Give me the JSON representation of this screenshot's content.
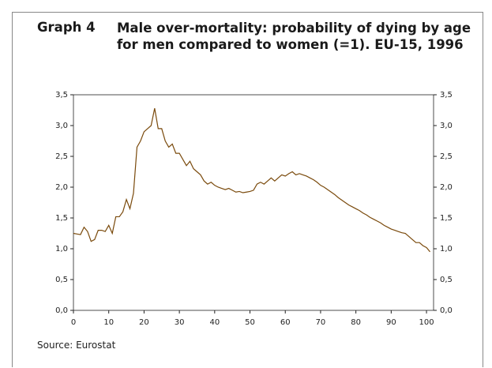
{
  "chart_data": {
    "type": "line",
    "label": "Graph 4",
    "title": "Male over-mortality: probability of dying by age for men compared to women (=1). EU-15, 1996",
    "source": "Source: Eurostat",
    "x": [
      0,
      1,
      2,
      3,
      4,
      5,
      6,
      7,
      8,
      9,
      10,
      11,
      12,
      13,
      14,
      15,
      16,
      17,
      18,
      19,
      20,
      21,
      22,
      23,
      24,
      25,
      26,
      27,
      28,
      29,
      30,
      31,
      32,
      33,
      34,
      35,
      36,
      37,
      38,
      39,
      40,
      41,
      42,
      43,
      44,
      45,
      46,
      47,
      48,
      49,
      50,
      51,
      52,
      53,
      54,
      55,
      56,
      57,
      58,
      59,
      60,
      61,
      62,
      63,
      64,
      65,
      66,
      67,
      68,
      69,
      70,
      71,
      72,
      73,
      74,
      75,
      76,
      77,
      78,
      79,
      80,
      81,
      82,
      83,
      84,
      85,
      86,
      87,
      88,
      89,
      90,
      91,
      92,
      93,
      94,
      95,
      96,
      97,
      98,
      99,
      100,
      101
    ],
    "series": [
      {
        "color": "#7a4a0c",
        "values": [
          1.25,
          1.24,
          1.23,
          1.35,
          1.28,
          1.12,
          1.15,
          1.3,
          1.3,
          1.28,
          1.38,
          1.25,
          1.52,
          1.52,
          1.6,
          1.8,
          1.65,
          1.9,
          2.65,
          2.75,
          2.9,
          2.95,
          3.0,
          3.28,
          2.95,
          2.95,
          2.75,
          2.65,
          2.7,
          2.55,
          2.55,
          2.45,
          2.35,
          2.42,
          2.3,
          2.25,
          2.2,
          2.1,
          2.05,
          2.08,
          2.03,
          2.0,
          1.98,
          1.96,
          1.98,
          1.95,
          1.92,
          1.93,
          1.91,
          1.92,
          1.93,
          1.95,
          2.05,
          2.08,
          2.05,
          2.1,
          2.15,
          2.1,
          2.15,
          2.2,
          2.18,
          2.22,
          2.25,
          2.2,
          2.22,
          2.2,
          2.18,
          2.15,
          2.12,
          2.08,
          2.03,
          2.0,
          1.96,
          1.92,
          1.88,
          1.83,
          1.79,
          1.75,
          1.71,
          1.68,
          1.65,
          1.62,
          1.58,
          1.55,
          1.51,
          1.48,
          1.45,
          1.42,
          1.38,
          1.35,
          1.32,
          1.3,
          1.28,
          1.26,
          1.25,
          1.2,
          1.15,
          1.1,
          1.1,
          1.05,
          1.02,
          0.95
        ]
      }
    ],
    "xlim": [
      0,
      102
    ],
    "xticks": [
      0,
      10,
      20,
      30,
      40,
      50,
      60,
      70,
      80,
      90,
      100
    ],
    "ylim": [
      0,
      3.5
    ],
    "yticks": [
      {
        "value": 0,
        "label": "0,0"
      },
      {
        "value": 0.5,
        "label": "0,5"
      },
      {
        "value": 1,
        "label": "1,0"
      },
      {
        "value": 1.5,
        "label": "1,5"
      },
      {
        "value": 2,
        "label": "2,0"
      },
      {
        "value": 2.5,
        "label": "2,5"
      },
      {
        "value": 3,
        "label": "3,0"
      },
      {
        "value": 3.5,
        "label": "3,5"
      }
    ],
    "y2lim": [
      0,
      3.5
    ],
    "y2ticks": [
      {
        "value": 0,
        "label": "0,0"
      },
      {
        "value": 0.5,
        "label": "0,5"
      },
      {
        "value": 1,
        "label": "1,0"
      },
      {
        "value": 1.5,
        "label": "1,5"
      },
      {
        "value": 2,
        "label": "2,0"
      },
      {
        "value": 2.5,
        "label": "2,5"
      },
      {
        "value": 3,
        "label": "3,0"
      },
      {
        "value": 3.5,
        "label": "3,5"
      }
    ],
    "grid": false
  }
}
